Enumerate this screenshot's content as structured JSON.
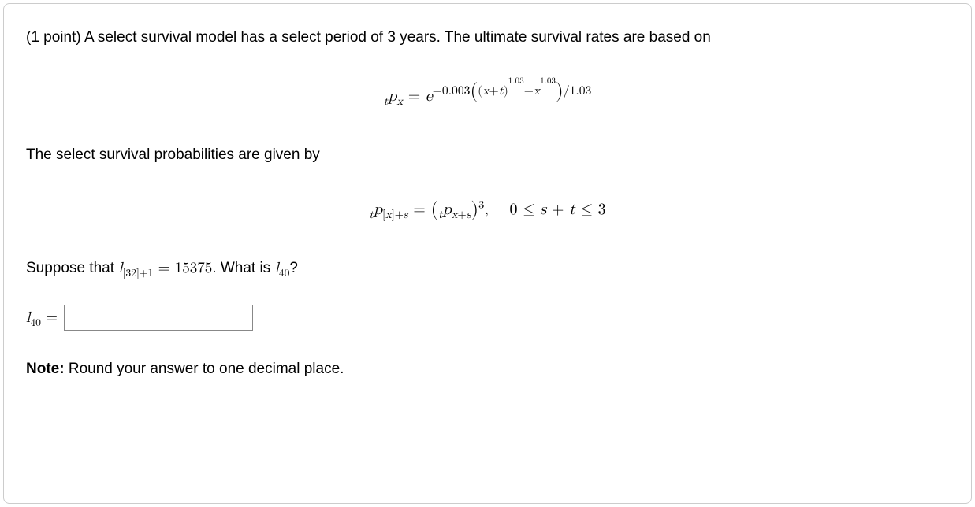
{
  "problem": {
    "points_label": "(1 point)",
    "intro": "A select survival model has a select period of 3 years. The ultimate survival rates are based on",
    "section2": "The select survival probabilities are given by",
    "suppose_prefix": "Suppose that ",
    "suppose_value": "15375",
    "suppose_suffix": ". What is ",
    "question_mark": "?",
    "note_label": "Note:",
    "note_text": "Round your answer to one decimal place."
  },
  "formula1": {
    "lhs_sub_pre": "t",
    "lhs_var": "p",
    "lhs_sub_post": "x",
    "eq": " = ",
    "base": "e",
    "exp_coeff": "−0.003",
    "exp_inner_var1": "x",
    "exp_inner_plus": "+",
    "exp_inner_var2": "t",
    "exp_power1": "1.03",
    "exp_minus": "−",
    "exp_var3": "x",
    "exp_power2": "1.03",
    "exp_divisor": "/1.03"
  },
  "formula2": {
    "lhs_sub_pre": "t",
    "lhs_var": "p",
    "lhs_sub_bracket_open": "[",
    "lhs_sub_x": "x",
    "lhs_sub_bracket_close": "]",
    "lhs_sub_plus": "+",
    "lhs_sub_s": "s",
    "eq": " = ",
    "rhs_sub_pre": "t",
    "rhs_var": "p",
    "rhs_sub_x": "x",
    "rhs_sub_plus": "+",
    "rhs_sub_s": "s",
    "rhs_power": "3",
    "comma": ",",
    "cond_lhs": "0",
    "cond_le1": " ≤ ",
    "cond_s": "s",
    "cond_plus": " + ",
    "cond_t": "t",
    "cond_le2": " ≤ ",
    "cond_rhs": "3"
  },
  "suppose_math": {
    "l": "l",
    "sub_bracket_open": "[",
    "sub_age": "32",
    "sub_bracket_close": "]",
    "sub_plus": "+",
    "sub_offset": "1",
    "eq": " = "
  },
  "whatis_math": {
    "l": "l",
    "sub": "40"
  },
  "answer": {
    "label_l": "l",
    "label_sub": "40",
    "label_eq": " = ",
    "value": ""
  }
}
